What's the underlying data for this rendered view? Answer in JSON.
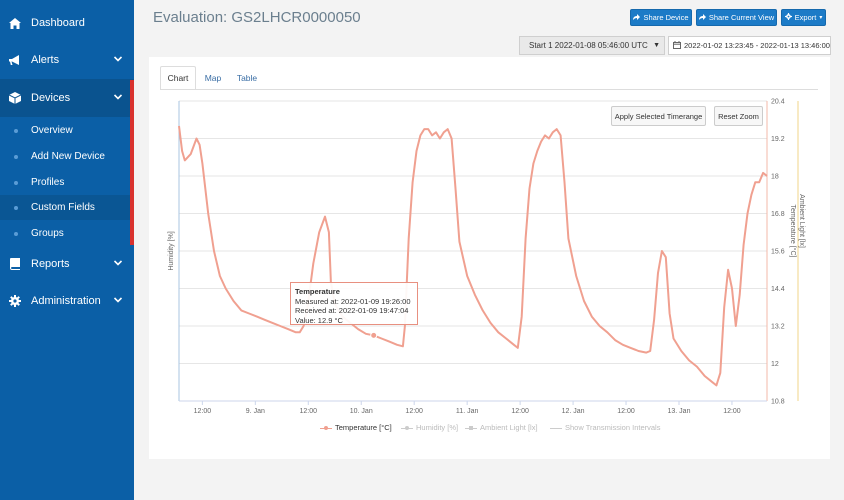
{
  "sidebar": {
    "items": [
      {
        "label": "Dashboard",
        "icon": "home-icon"
      },
      {
        "label": "Alerts",
        "icon": "megaphone-icon"
      },
      {
        "label": "Devices",
        "icon": "cube-icon"
      },
      {
        "label": "Reports",
        "icon": "book-icon"
      },
      {
        "label": "Administration",
        "icon": "gear-icon"
      }
    ],
    "sub_items": [
      "Overview",
      "Add New Device",
      "Profiles",
      "Custom Fields",
      "Groups"
    ],
    "accent": "#d9322e"
  },
  "header": {
    "title": "Evaluation: GS2LHCR0000050",
    "share_device": "Share Device",
    "share_view": "Share Current View",
    "export": "Export",
    "start_select": "Start 1 2022-01-08 05:46:00 UTC",
    "date_range": "2022-01-02 13:23:45 - 2022-01-13 13:46:00"
  },
  "tabs": [
    "Chart",
    "Map",
    "Table"
  ],
  "chart_buttons": {
    "apply": "Apply Selected Timerange",
    "reset": "Reset Zoom"
  },
  "tooltip": {
    "title": "Temperature",
    "measured": "Measured at: 2022-01-09 19:26:00",
    "received": "Received at: 2022-01-09 19:47:04",
    "value": "Value: 12.9 °C"
  },
  "legend": [
    "Temperature [°C]",
    "Humidity [%]",
    "Ambient Light [lx]",
    "Show Transmission Intervals"
  ],
  "chart_data": {
    "type": "line",
    "y_left_label": "Humidity [%]",
    "y_right_label": "Temperature [°C]",
    "y_right2_label": "Ambient Light [lx]",
    "x_ticks": [
      "12:00",
      "9. Jan",
      "12:00",
      "10. Jan",
      "12:00",
      "11. Jan",
      "12:00",
      "12. Jan",
      "12:00",
      "13. Jan",
      "12:00"
    ],
    "y_ticks": [
      "20.4",
      "19.2",
      "18",
      "16.8",
      "15.6",
      "14.4",
      "13.2",
      "12",
      "10.8"
    ],
    "ylim": [
      10.8,
      20.4
    ],
    "xlim_hours": [
      0,
      128
    ],
    "series": [
      {
        "name": "Temperature [°C]",
        "color": "#f0a090",
        "points": [
          [
            0,
            19.6
          ],
          [
            0.8,
            18.8
          ],
          [
            1.5,
            18.5
          ],
          [
            3,
            18.7
          ],
          [
            4.5,
            19.2
          ],
          [
            5.3,
            19.0
          ],
          [
            6,
            18.4
          ],
          [
            7.5,
            16.8
          ],
          [
            9,
            15.6
          ],
          [
            10.5,
            14.8
          ],
          [
            12,
            14.4
          ],
          [
            14,
            14.0
          ],
          [
            16,
            13.7
          ],
          [
            18,
            13.6
          ],
          [
            20,
            13.5
          ],
          [
            22,
            13.4
          ],
          [
            24,
            13.3
          ],
          [
            26,
            13.2
          ],
          [
            28,
            13.1
          ],
          [
            30,
            13.0
          ],
          [
            31,
            13.0
          ],
          [
            32,
            13.2
          ],
          [
            33,
            13.8
          ],
          [
            34.5,
            15.2
          ],
          [
            36,
            16.2
          ],
          [
            37.5,
            16.7
          ],
          [
            38.5,
            16.2
          ],
          [
            39,
            14.6
          ],
          [
            40,
            13.9
          ],
          [
            42,
            13.5
          ],
          [
            44,
            13.3
          ],
          [
            46,
            13.1
          ],
          [
            48,
            12.95
          ],
          [
            50,
            12.9
          ],
          [
            52,
            12.8
          ],
          [
            54,
            12.7
          ],
          [
            56,
            12.6
          ],
          [
            57.5,
            12.55
          ],
          [
            58,
            13.2
          ],
          [
            59,
            16.0
          ],
          [
            60,
            17.8
          ],
          [
            61,
            18.8
          ],
          [
            62,
            19.3
          ],
          [
            63,
            19.5
          ],
          [
            64,
            19.5
          ],
          [
            65,
            19.3
          ],
          [
            66,
            19.4
          ],
          [
            67,
            19.2
          ],
          [
            68,
            19.4
          ],
          [
            69,
            19.5
          ],
          [
            70,
            19.2
          ],
          [
            71,
            17.6
          ],
          [
            72,
            15.9
          ],
          [
            74,
            14.8
          ],
          [
            76,
            14.2
          ],
          [
            78,
            13.7
          ],
          [
            80,
            13.3
          ],
          [
            82,
            13.0
          ],
          [
            84,
            12.8
          ],
          [
            86,
            12.6
          ],
          [
            87,
            12.5
          ],
          [
            88,
            13.5
          ],
          [
            89,
            16.0
          ],
          [
            90,
            17.6
          ],
          [
            91,
            18.4
          ],
          [
            92,
            18.8
          ],
          [
            93,
            19.1
          ],
          [
            94,
            19.3
          ],
          [
            95,
            19.2
          ],
          [
            96,
            19.4
          ],
          [
            97,
            19.5
          ],
          [
            98,
            19.3
          ],
          [
            99,
            17.8
          ],
          [
            100,
            16.0
          ],
          [
            102,
            14.8
          ],
          [
            104,
            14.0
          ],
          [
            106,
            13.5
          ],
          [
            108,
            13.2
          ],
          [
            110,
            13.0
          ],
          [
            112,
            12.75
          ],
          [
            114,
            12.6
          ],
          [
            116,
            12.5
          ],
          [
            118,
            12.4
          ],
          [
            120,
            12.35
          ],
          [
            121,
            12.4
          ],
          [
            122,
            13.4
          ],
          [
            123,
            14.9
          ],
          [
            124,
            15.6
          ],
          [
            125,
            15.4
          ],
          [
            126,
            13.6
          ],
          [
            127,
            12.8
          ],
          [
            129,
            12.4
          ],
          [
            131,
            12.1
          ],
          [
            133,
            11.9
          ],
          [
            135,
            11.6
          ],
          [
            137,
            11.4
          ],
          [
            138,
            11.3
          ],
          [
            139,
            11.7
          ],
          [
            140,
            13.8
          ],
          [
            141,
            15.0
          ],
          [
            142,
            14.4
          ],
          [
            143,
            13.2
          ],
          [
            144,
            14.2
          ],
          [
            145,
            15.8
          ],
          [
            146,
            16.8
          ],
          [
            147,
            17.4
          ],
          [
            148,
            17.8
          ],
          [
            149,
            17.8
          ],
          [
            150,
            18.1
          ],
          [
            151,
            18.0
          ]
        ]
      }
    ]
  }
}
